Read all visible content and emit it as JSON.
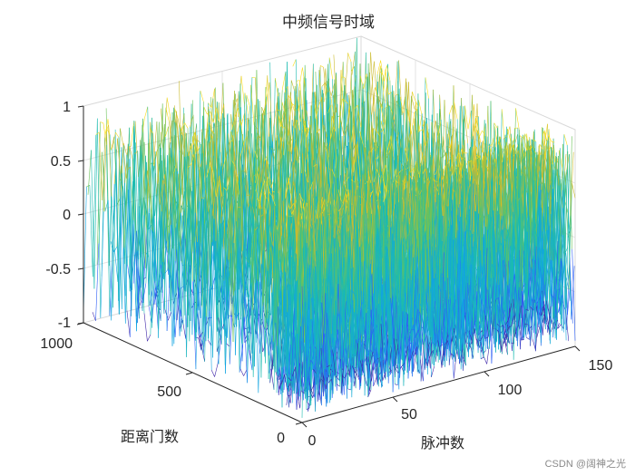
{
  "chart_data": {
    "type": "surface-mesh",
    "title": "中频信号时域",
    "xlabel": "脉冲数",
    "ylabel": "距离门数",
    "zlabel": "",
    "xlim": [
      0,
      150
    ],
    "ylim": [
      0,
      1000
    ],
    "zlim": [
      -1,
      1
    ],
    "xticks": [
      "0",
      "50",
      "100",
      "150"
    ],
    "yticks": [
      "0",
      "500",
      "1000"
    ],
    "zticks": [
      "-1",
      "-0.5",
      "0",
      "0.5",
      "1"
    ],
    "grid": true,
    "colormap": [
      "#3e26a8",
      "#2e5ff5",
      "#12a4e1",
      "#1cbbb0",
      "#6cc35a",
      "#cbbb2f",
      "#fade1d"
    ],
    "description_data": {
      "pulses": 150,
      "range_gates": 1000,
      "z_min": -1,
      "z_max": 1
    }
  },
  "watermark": "CSDN @阔神之光"
}
